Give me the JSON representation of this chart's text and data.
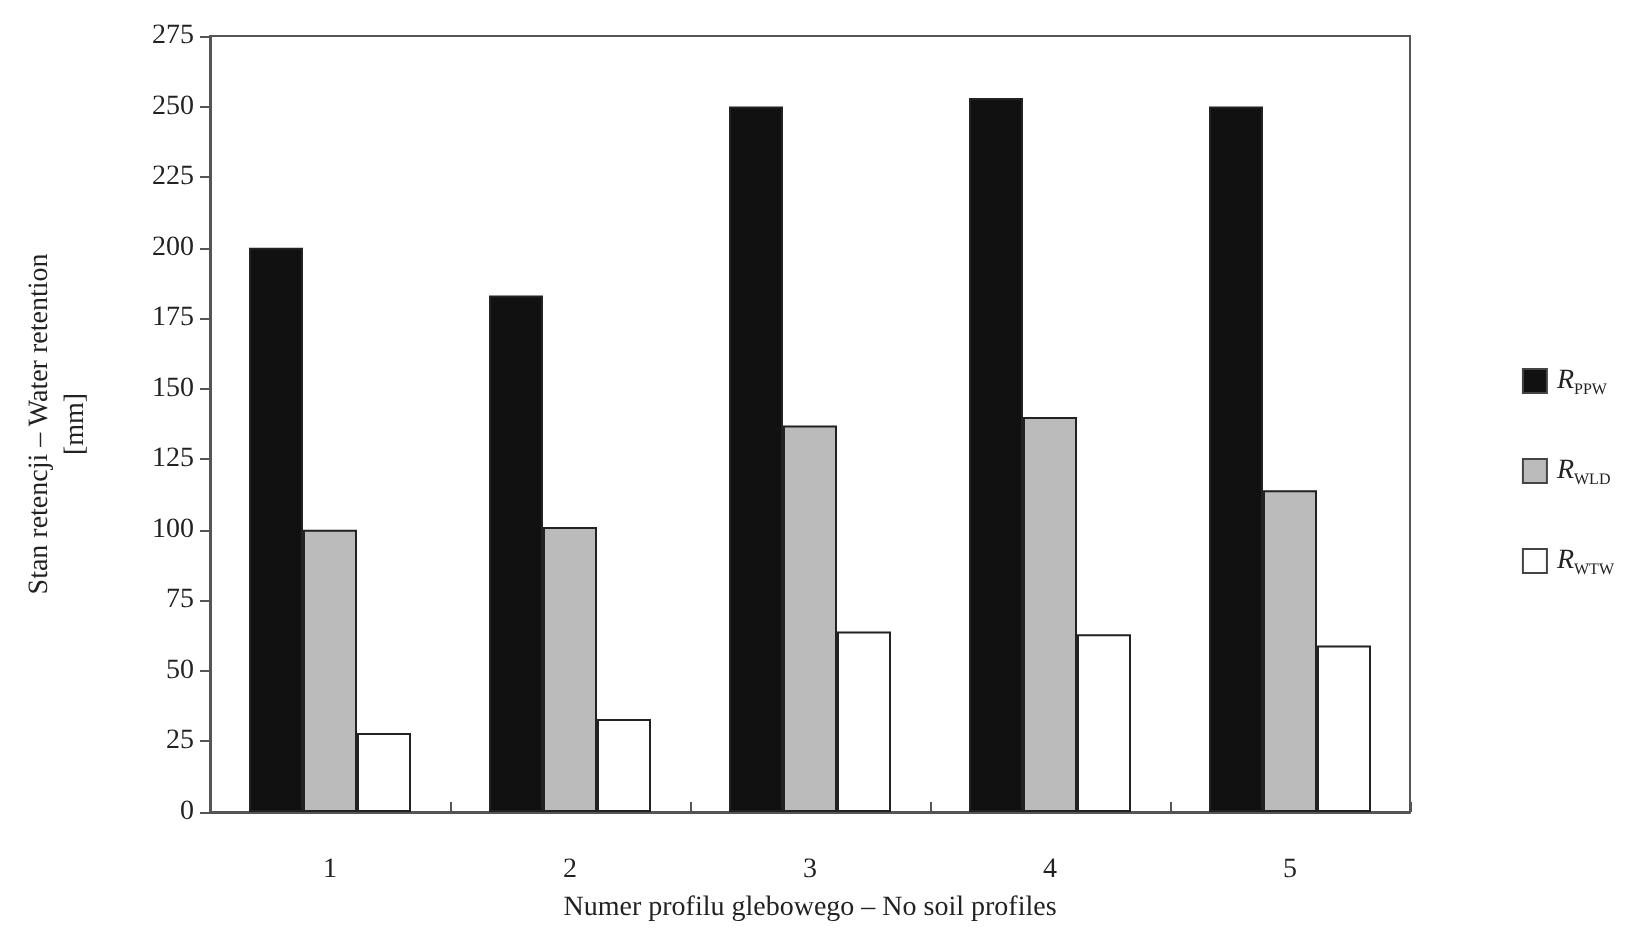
{
  "chart_data": {
    "type": "bar",
    "xlabel": "Numer profilu glebowego – No soil profiles",
    "ylabel": "Stan retencji – Water retention\n[mm]",
    "categories": [
      "1",
      "2",
      "3",
      "4",
      "5"
    ],
    "series": [
      {
        "name": "R$_{PPW}$",
        "color": "#111111",
        "values": [
          200,
          183,
          250,
          253,
          250
        ]
      },
      {
        "name": "R$_{WLD}$",
        "color": "#bbbbbb",
        "values": [
          100,
          101,
          137,
          140,
          114
        ]
      },
      {
        "name": "R$_{WTW}$",
        "color": "#ffffff",
        "values": [
          28,
          33,
          64,
          63,
          59
        ]
      }
    ],
    "ylim": [
      0,
      275
    ],
    "yticks": [
      0,
      25,
      50,
      75,
      100,
      125,
      150,
      175,
      200,
      225,
      250,
      275
    ],
    "grid": false,
    "legend": "right"
  }
}
